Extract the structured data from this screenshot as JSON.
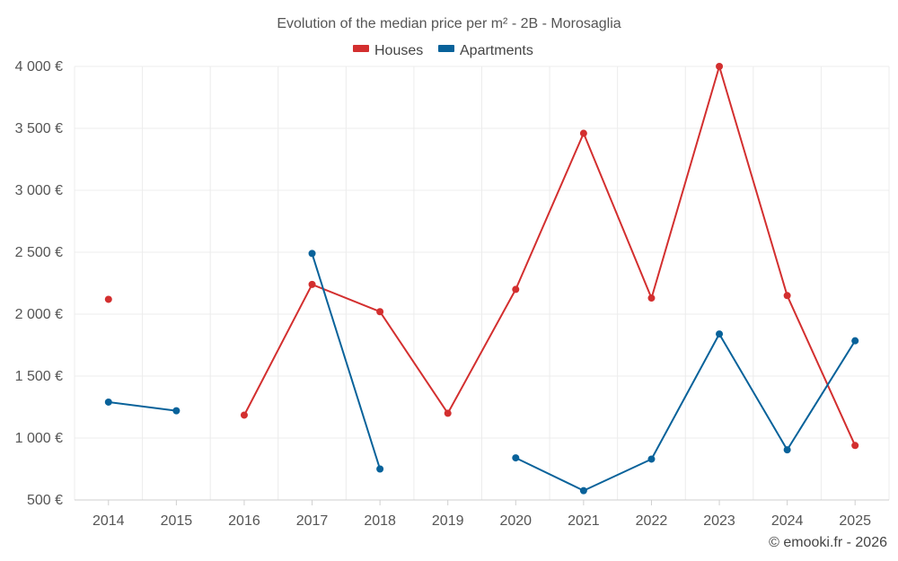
{
  "chart_data": {
    "type": "line",
    "title": "Evolution of the median price per m² - 2B - Morosaglia",
    "categories": [
      "2014",
      "2015",
      "2016",
      "2017",
      "2018",
      "2019",
      "2020",
      "2021",
      "2022",
      "2023",
      "2024",
      "2025"
    ],
    "ylim": [
      500,
      4000
    ],
    "yticks": [
      500,
      1000,
      1500,
      2000,
      2500,
      3000,
      3500,
      4000
    ],
    "ytick_labels": [
      "500 €",
      "1 000 €",
      "1 500 €",
      "2 000 €",
      "2 500 €",
      "3 000 €",
      "3 500 €",
      "4 000 €"
    ],
    "grid": true,
    "legend_position": "top-center",
    "series": [
      {
        "name": "Houses",
        "color": "#d32f2f",
        "values": [
          2120,
          null,
          1185,
          2240,
          2020,
          1200,
          2200,
          3460,
          2130,
          4000,
          2150,
          940
        ]
      },
      {
        "name": "Apartments",
        "color": "#08629a",
        "values": [
          1290,
          1220,
          null,
          2490,
          750,
          null,
          840,
          575,
          830,
          1840,
          905,
          1785
        ]
      }
    ],
    "credit": "© emooki.fr - 2026"
  }
}
